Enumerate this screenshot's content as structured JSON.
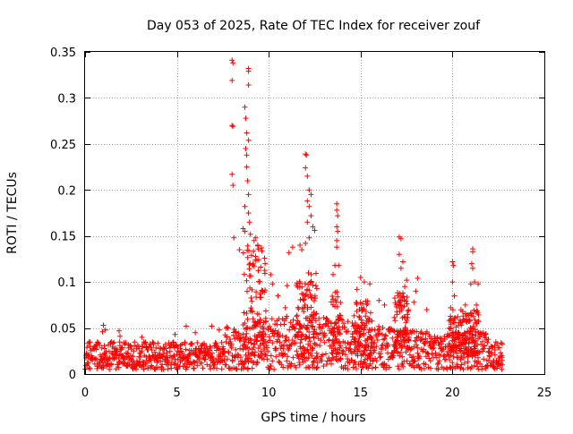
{
  "chart_data": {
    "type": "scatter",
    "title": "Day 053 of 2025, Rate Of TEC Index for receiver zouf",
    "xlabel": "GPS time / hours",
    "ylabel": "ROTI / TECUs",
    "xlim": [
      0,
      25
    ],
    "ylim": [
      0,
      0.35
    ],
    "x_ticks": [
      0,
      5,
      10,
      15,
      20,
      25
    ],
    "x_tick_labels": [
      "0",
      "5",
      "10",
      "15",
      "20",
      "25"
    ],
    "y_ticks": [
      0,
      0.05,
      0.1,
      0.15,
      0.2,
      0.25,
      0.3,
      0.35
    ],
    "y_tick_labels": [
      "0",
      "0.05",
      "0.1",
      "0.15",
      "0.2",
      "0.25",
      "0.3",
      "0.35"
    ],
    "grid": true,
    "marker": "+",
    "color": "#ff0000",
    "data_range_hours": [
      0,
      22.75
    ],
    "baseline_band": [
      0.005,
      0.035
    ],
    "series": [
      {
        "name": "ROTI",
        "points": [
          [
            8.0,
            0.341
          ],
          [
            8.05,
            0.338
          ],
          [
            8.0,
            0.319
          ],
          [
            8.9,
            0.332
          ],
          [
            8.9,
            0.329
          ],
          [
            8.9,
            0.314
          ],
          [
            8.0,
            0.27
          ],
          [
            8.05,
            0.269
          ],
          [
            8.7,
            0.29
          ],
          [
            8.75,
            0.278
          ],
          [
            8.8,
            0.262
          ],
          [
            8.9,
            0.254
          ],
          [
            8.0,
            0.217
          ],
          [
            8.05,
            0.205
          ],
          [
            8.75,
            0.245
          ],
          [
            8.8,
            0.238
          ],
          [
            8.8,
            0.225
          ],
          [
            8.85,
            0.21
          ],
          [
            8.9,
            0.195
          ],
          [
            8.7,
            0.182
          ],
          [
            8.9,
            0.175
          ],
          [
            8.95,
            0.165
          ],
          [
            8.6,
            0.158
          ],
          [
            8.7,
            0.155
          ],
          [
            9.0,
            0.152
          ],
          [
            9.2,
            0.145
          ],
          [
            9.3,
            0.148
          ],
          [
            8.1,
            0.148
          ],
          [
            8.4,
            0.135
          ],
          [
            9.4,
            0.14
          ],
          [
            12.0,
            0.239
          ],
          [
            12.05,
            0.238
          ],
          [
            12.0,
            0.224
          ],
          [
            12.1,
            0.215
          ],
          [
            12.2,
            0.2
          ],
          [
            12.3,
            0.195
          ],
          [
            12.1,
            0.188
          ],
          [
            12.2,
            0.182
          ],
          [
            12.3,
            0.172
          ],
          [
            12.1,
            0.165
          ],
          [
            12.4,
            0.16
          ],
          [
            12.5,
            0.156
          ],
          [
            12.2,
            0.148
          ],
          [
            12.0,
            0.142
          ],
          [
            11.7,
            0.14
          ],
          [
            11.8,
            0.135
          ],
          [
            11.3,
            0.138
          ],
          [
            11.1,
            0.132
          ],
          [
            13.7,
            0.185
          ],
          [
            13.7,
            0.178
          ],
          [
            13.75,
            0.172
          ],
          [
            13.7,
            0.16
          ],
          [
            13.75,
            0.155
          ],
          [
            13.7,
            0.145
          ],
          [
            13.7,
            0.138
          ],
          [
            13.8,
            0.118
          ],
          [
            13.6,
            0.118
          ],
          [
            13.5,
            0.108
          ],
          [
            17.1,
            0.149
          ],
          [
            17.2,
            0.147
          ],
          [
            17.1,
            0.13
          ],
          [
            17.3,
            0.122
          ],
          [
            17.2,
            0.115
          ],
          [
            17.5,
            0.102
          ],
          [
            17.4,
            0.095
          ],
          [
            17.3,
            0.088
          ],
          [
            18.1,
            0.104
          ],
          [
            18.0,
            0.09
          ],
          [
            17.9,
            0.078
          ],
          [
            18.6,
            0.07
          ],
          [
            20.0,
            0.122
          ],
          [
            20.05,
            0.118
          ],
          [
            20.0,
            0.1
          ],
          [
            20.1,
            0.085
          ],
          [
            19.9,
            0.072
          ],
          [
            21.1,
            0.136
          ],
          [
            21.1,
            0.133
          ],
          [
            21.05,
            0.12
          ],
          [
            21.1,
            0.115
          ],
          [
            21.2,
            0.1
          ],
          [
            21.0,
            0.098
          ],
          [
            21.4,
            0.098
          ],
          [
            21.3,
            0.075
          ],
          [
            20.7,
            0.075
          ],
          [
            1.0,
            0.053
          ],
          [
            0.95,
            0.046
          ],
          [
            1.1,
            0.048
          ],
          [
            1.85,
            0.047
          ],
          [
            1.9,
            0.041
          ],
          [
            0.1,
            0.029
          ],
          [
            5.5,
            0.052
          ],
          [
            6.9,
            0.052
          ],
          [
            7.3,
            0.048
          ],
          [
            6.0,
            0.045
          ],
          [
            4.9,
            0.043
          ],
          [
            3.1,
            0.04
          ],
          [
            15.0,
            0.105
          ],
          [
            15.2,
            0.1
          ],
          [
            15.5,
            0.098
          ],
          [
            14.8,
            0.092
          ],
          [
            16.0,
            0.08
          ],
          [
            16.3,
            0.075
          ],
          [
            10.1,
            0.108
          ],
          [
            10.2,
            0.098
          ],
          [
            10.5,
            0.085
          ],
          [
            10.9,
            0.072
          ],
          [
            11.0,
            0.096
          ],
          [
            9.8,
            0.12
          ]
        ]
      }
    ]
  }
}
